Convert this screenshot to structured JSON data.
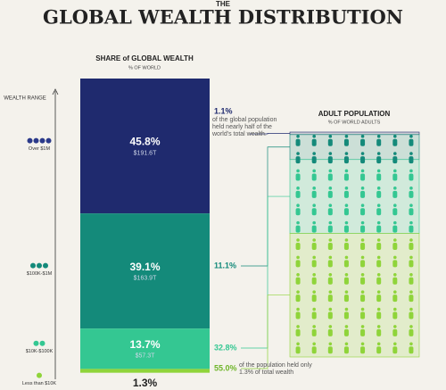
{
  "chart_data": {
    "type": "wealth_pyramid",
    "pretitle": "THE",
    "title": "GLOBAL WEALTH DISTRIBUTION",
    "bar_title": "SHARE of GLOBAL WEALTH",
    "bar_subtitle": "% OF WORLD",
    "axis_label": "WEALTH RANGE",
    "categories": [
      "Over $1M",
      "$100K-$1M",
      "$10K-$100K",
      "Less than $10K"
    ],
    "ylim": [
      0,
      100
    ],
    "wealth_share": {
      "values": [
        45.8,
        39.1,
        13.7,
        1.3
      ],
      "value_labels": [
        "45.8%",
        "39.1%",
        "13.7%",
        "1.3%"
      ],
      "colors": [
        "#1f2a6e",
        "#148a7a",
        "#34c792",
        "#8fd43a"
      ]
    },
    "wealth_usd": {
      "values": [
        191.6,
        163.9,
        57.3,
        null
      ],
      "value_labels": [
        "$191.6T",
        "$163.9T",
        "$57.3T",
        null
      ]
    },
    "population": {
      "title": "ADULT POPULATION",
      "subtitle": "% OF WORLD ADULTS",
      "values": [
        1.1,
        11.1,
        32.8,
        55.0
      ],
      "value_labels": [
        "1.1%",
        "11.1%",
        "32.8%",
        "55.0%"
      ],
      "colors": [
        "#1f2a6e",
        "#148a7a",
        "#34c792",
        "#8fd43a"
      ]
    },
    "top_note": "of the global population held nearly half of the world's total wealth.",
    "bottom_note": "of the population held only 1.3% of total wealth"
  }
}
